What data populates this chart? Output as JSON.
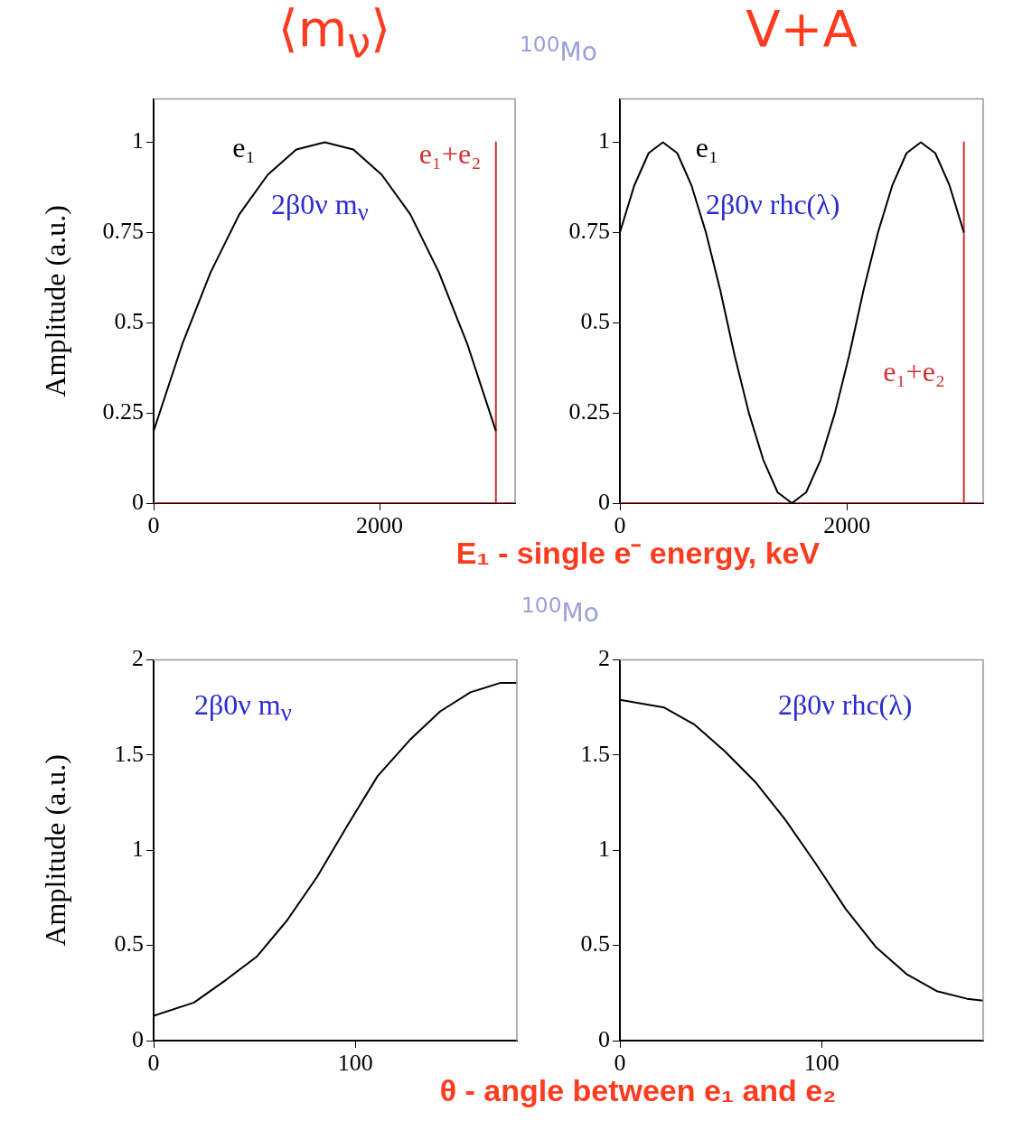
{
  "chart_data": [
    {
      "type": "line",
      "title": "⟨m$_{ν}$⟩",
      "subtitle": "2β0ν m$_{ν}$",
      "ylabel": "Amplitude (a.u.)",
      "annotations": [
        "$^{100}$Mo"
      ],
      "xlim": [
        0,
        3200
      ],
      "xticks": [
        0,
        2000
      ],
      "ylim": [
        0,
        1.12
      ],
      "yticks": [
        0,
        0.25,
        0.5,
        0.75,
        1
      ],
      "grid": false,
      "legend": false,
      "marker": "none",
      "series": [
        {
          "name": "e₁",
          "color": "#000000",
          "x": [
            0,
            253,
            505,
            758,
            1010,
            1263,
            1515,
            1768,
            2020,
            2273,
            2525,
            2778,
            3030
          ],
          "values": [
            0.2,
            0.44,
            0.64,
            0.8,
            0.91,
            0.98,
            1,
            0.98,
            0.91,
            0.8,
            0.64,
            0.44,
            0.2
          ]
        },
        {
          "name": "e₁+e₂",
          "color": "#d03030",
          "x": [
            0,
            3030,
            3030,
            3030,
            3200
          ],
          "values": [
            0,
            0,
            1,
            0,
            0
          ]
        }
      ]
    },
    {
      "type": "line",
      "title": "V+A",
      "subtitle": "2β0ν rhc(λ)",
      "xlabel": "E₁ - single e⁻ energy, keV",
      "xlim": [
        0,
        3200
      ],
      "xticks": [
        0,
        2000
      ],
      "ylim": [
        0,
        1.12
      ],
      "yticks": [
        0,
        0.25,
        0.5,
        0.75,
        1
      ],
      "grid": false,
      "legend": false,
      "marker": "none",
      "series": [
        {
          "name": "e₁",
          "color": "#000000",
          "x": [
            0,
            126,
            253,
            379,
            505,
            631,
            758,
            884,
            1010,
            1136,
            1263,
            1389,
            1515,
            1641,
            1768,
            1894,
            2020,
            2146,
            2273,
            2399,
            2525,
            2651,
            2778,
            2904,
            3030
          ],
          "values": [
            0.75,
            0.88,
            0.97,
            1,
            0.97,
            0.88,
            0.75,
            0.59,
            0.41,
            0.25,
            0.12,
            0.03,
            0,
            0.03,
            0.12,
            0.25,
            0.41,
            0.59,
            0.75,
            0.88,
            0.97,
            1,
            0.97,
            0.88,
            0.75
          ]
        },
        {
          "name": "e₁+e₂",
          "color": "#d03030",
          "x": [
            0,
            3030,
            3030,
            3030,
            3200
          ],
          "values": [
            0,
            0,
            1,
            0,
            0
          ]
        }
      ]
    },
    {
      "type": "line",
      "subtitle": "2β0ν m$_{ν}$",
      "ylabel": "Amplitude (a.u.)",
      "annotations": [
        "$^{100}$Mo"
      ],
      "xlim": [
        0,
        180
      ],
      "xticks": [
        0,
        100
      ],
      "ylim": [
        0,
        2
      ],
      "yticks": [
        0,
        0.5,
        1,
        1.5,
        2
      ],
      "grid": false,
      "legend": false,
      "marker": "none",
      "series": [
        {
          "color": "#000000",
          "x": [
            0,
            20,
            36,
            51,
            66,
            81,
            96,
            111,
            127,
            142,
            157,
            172,
            180
          ],
          "values": [
            0.13,
            0.2,
            0.32,
            0.44,
            0.63,
            0.86,
            1.13,
            1.39,
            1.58,
            1.73,
            1.83,
            1.88,
            1.88
          ]
        }
      ]
    },
    {
      "type": "line",
      "subtitle": "2β0ν rhc(λ)",
      "xlabel": "θ - angle between e₁ and e₂",
      "xlim": [
        0,
        180
      ],
      "xticks": [
        0,
        100
      ],
      "ylim": [
        0,
        2
      ],
      "yticks": [
        0,
        0.5,
        1,
        1.5,
        2
      ],
      "grid": false,
      "legend": false,
      "marker": "none",
      "series": [
        {
          "color": "#000000",
          "x": [
            0,
            22,
            37,
            52,
            67,
            82,
            97,
            112,
            127,
            142,
            157,
            172,
            180
          ],
          "values": [
            1.79,
            1.75,
            1.66,
            1.52,
            1.36,
            1.16,
            0.93,
            0.69,
            0.49,
            0.35,
            0.26,
            0.22,
            0.21
          ]
        }
      ]
    }
  ]
}
